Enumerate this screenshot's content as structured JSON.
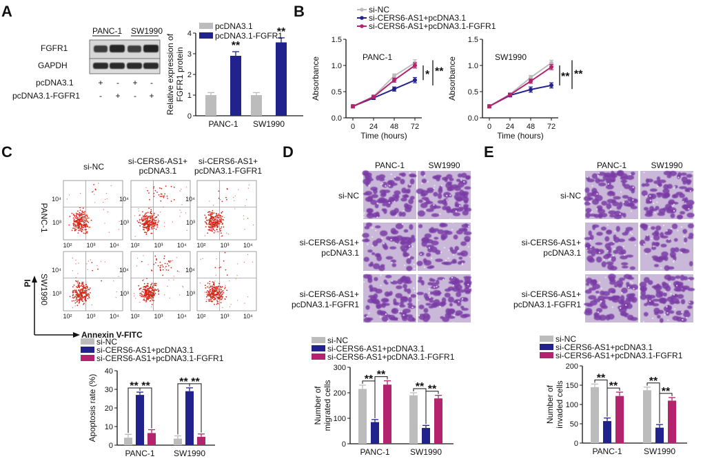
{
  "colors": {
    "grey": "#bcbcbc",
    "navy": "#22228c",
    "magenta": "#b4246e",
    "purple": "#7a3ca6",
    "red": "#d6281a"
  },
  "panels": {
    "A": "A",
    "B": "B",
    "C": "C",
    "D": "D",
    "E": "E"
  },
  "panelA": {
    "cell_lines": [
      "PANC-1",
      "SW1990"
    ],
    "bands": [
      "FGFR1",
      "GAPDH"
    ],
    "rows": [
      {
        "label": "pcDNA3.1",
        "signs": [
          "+",
          "-",
          "+",
          "-"
        ]
      },
      {
        "label": "pcDNA3.1-FGFR1",
        "signs": [
          "-",
          "+",
          "-",
          "+"
        ]
      }
    ]
  },
  "panelB": {
    "legend": [
      "si-NC",
      "si-CERS6-AS1+pcDNA3.1",
      "si-CERS6-AS1+pcDNA3.1-FGFR1"
    ],
    "sig_panc": [
      "*",
      "**"
    ],
    "sig_sw": [
      "**",
      "**"
    ]
  },
  "panelC": {
    "col_headers": [
      "si-NC",
      "si-CERS6-AS1+\npcDNA3.1",
      "si-CERS6-AS1+\npcDNA3.1-FGFR1"
    ],
    "row_labels": [
      "PANC-1",
      "SW1990"
    ],
    "y_axis": "PI",
    "x_axis": "Annexin V-FITC",
    "y_ticks": [
      "10⁴",
      "10³"
    ],
    "x_ticks": [
      "10²",
      "10³",
      "10⁴"
    ],
    "legend": [
      "si-NC",
      "si-CERS6-AS1+pcDNA3.1",
      "si-CERS6-AS1+pcDNA3.1-FGFR1"
    ]
  },
  "panelD": {
    "col_headers": [
      "PANC-1",
      "SW1990"
    ],
    "row_labels": [
      "si-NC",
      "si-CERS6-AS1+\npcDNA3.1",
      "si-CERS6-AS1+\npcDNA3.1-FGFR1"
    ],
    "legend": [
      "si-NC",
      "si-CERS6-AS1+pcDNA3.1",
      "si-CERS6-AS1+pcDNA3.1-FGFR1"
    ]
  },
  "panelE": {
    "col_headers": [
      "PANC-1",
      "SW1990"
    ],
    "row_labels": [
      "si-NC",
      "si-CERS6-AS1+\npcDNA3.1",
      "si-CERS6-AS1+\npcDNA3.1-FGFR1"
    ],
    "legend": [
      "si-NC",
      "si-CERS6-AS1+pcDNA3.1",
      "si-CERS6-AS1+pcDNA3.1-FGFR1"
    ]
  },
  "chart_data": [
    {
      "id": "A-bar",
      "type": "bar",
      "categories": [
        "PANC-1",
        "SW1990"
      ],
      "series": [
        {
          "name": "pcDNA3.1",
          "values": [
            1.0,
            1.0
          ],
          "err": [
            0.12,
            0.12
          ]
        },
        {
          "name": "pcDNA3.1-FGFR1",
          "values": [
            2.9,
            3.55
          ],
          "err": [
            0.2,
            0.22
          ]
        }
      ],
      "ylabel": "Relative expression of\nFGFR1 protein",
      "ylim": [
        0,
        4
      ],
      "yticks": [
        0,
        1,
        2,
        3,
        4
      ],
      "sig": [
        [
          "",
          "**"
        ],
        [
          "",
          "**"
        ]
      ]
    },
    {
      "id": "B-line-panc",
      "type": "line",
      "title": "PANC-1",
      "x": [
        0,
        24,
        48,
        72
      ],
      "series": [
        {
          "name": "si-NC",
          "values": [
            0.22,
            0.41,
            0.8,
            1.05
          ],
          "err": [
            0.03,
            0.03,
            0.04,
            0.06
          ]
        },
        {
          "name": "si-CERS6-AS1+pcDNA3.1",
          "values": [
            0.22,
            0.38,
            0.55,
            0.72
          ],
          "err": [
            0.03,
            0.03,
            0.04,
            0.05
          ]
        },
        {
          "name": "si-CERS6-AS1+pcDNA3.1-FGFR1",
          "values": [
            0.22,
            0.4,
            0.72,
            1.0
          ],
          "err": [
            0.03,
            0.03,
            0.04,
            0.05
          ]
        }
      ],
      "xlabel": "Time (hours)",
      "ylabel": "Absorbance",
      "ylim": [
        0,
        1.5
      ],
      "yticks": [
        0.0,
        0.5,
        1.0,
        1.5
      ]
    },
    {
      "id": "B-line-sw",
      "type": "line",
      "title": "SW1990",
      "x": [
        0,
        24,
        48,
        72
      ],
      "series": [
        {
          "name": "si-NC",
          "values": [
            0.22,
            0.45,
            0.77,
            1.05
          ],
          "err": [
            0.03,
            0.03,
            0.04,
            0.05
          ]
        },
        {
          "name": "si-CERS6-AS1+pcDNA3.1",
          "values": [
            0.22,
            0.43,
            0.54,
            0.62
          ],
          "err": [
            0.03,
            0.03,
            0.05,
            0.05
          ]
        },
        {
          "name": "si-CERS6-AS1+pcDNA3.1-FGFR1",
          "values": [
            0.22,
            0.44,
            0.7,
            0.97
          ],
          "err": [
            0.03,
            0.03,
            0.04,
            0.05
          ]
        }
      ],
      "xlabel": "Time (hours)",
      "ylabel": "Absorbance",
      "ylim": [
        0,
        1.5
      ],
      "yticks": [
        0.0,
        0.5,
        1.0,
        1.5
      ]
    },
    {
      "id": "C-bar",
      "type": "bar",
      "categories": [
        "PANC-1",
        "SW1990"
      ],
      "series": [
        {
          "name": "si-NC",
          "values": [
            4,
            3.5
          ],
          "err": [
            1.8,
            1.5
          ]
        },
        {
          "name": "si-CERS6-AS1+pcDNA3.1",
          "values": [
            27,
            29
          ],
          "err": [
            1.5,
            1.8
          ]
        },
        {
          "name": "si-CERS6-AS1+pcDNA3.1-FGFR1",
          "values": [
            6.5,
            4.5
          ],
          "err": [
            1.8,
            1.5
          ]
        }
      ],
      "ylabel": "Apoptosis rate (%)",
      "ylim": [
        0,
        40
      ],
      "yticks": [
        0,
        10,
        20,
        30,
        40
      ],
      "sig": [
        "**",
        "**"
      ]
    },
    {
      "id": "D-bar",
      "type": "bar",
      "categories": [
        "PANC-1",
        "SW1990"
      ],
      "series": [
        {
          "name": "si-NC",
          "values": [
            215,
            190
          ],
          "err": [
            15,
            10
          ]
        },
        {
          "name": "si-CERS6-AS1+pcDNA3.1",
          "values": [
            85,
            62
          ],
          "err": [
            10,
            10
          ]
        },
        {
          "name": "si-CERS6-AS1+pcDNA3.1-FGFR1",
          "values": [
            232,
            178
          ],
          "err": [
            15,
            12
          ]
        }
      ],
      "ylabel": "Number of\nmigrated cells",
      "ylim": [
        0,
        300
      ],
      "yticks": [
        0,
        100,
        200,
        300
      ],
      "sig": [
        "**",
        "**"
      ]
    },
    {
      "id": "E-bar",
      "type": "bar",
      "categories": [
        "PANC-1",
        "SW1990"
      ],
      "series": [
        {
          "name": "si-NC",
          "values": [
            145,
            137
          ],
          "err": [
            8,
            8
          ]
        },
        {
          "name": "si-CERS6-AS1+pcDNA3.1",
          "values": [
            57,
            40
          ],
          "err": [
            8,
            8
          ]
        },
        {
          "name": "si-CERS6-AS1+pcDNA3.1-FGFR1",
          "values": [
            122,
            110
          ],
          "err": [
            10,
            8
          ]
        }
      ],
      "ylabel": "Number of\ninvaded cells",
      "ylim": [
        0,
        200
      ],
      "yticks": [
        0,
        50,
        100,
        150,
        200
      ],
      "sig": [
        "**",
        "**"
      ]
    }
  ]
}
